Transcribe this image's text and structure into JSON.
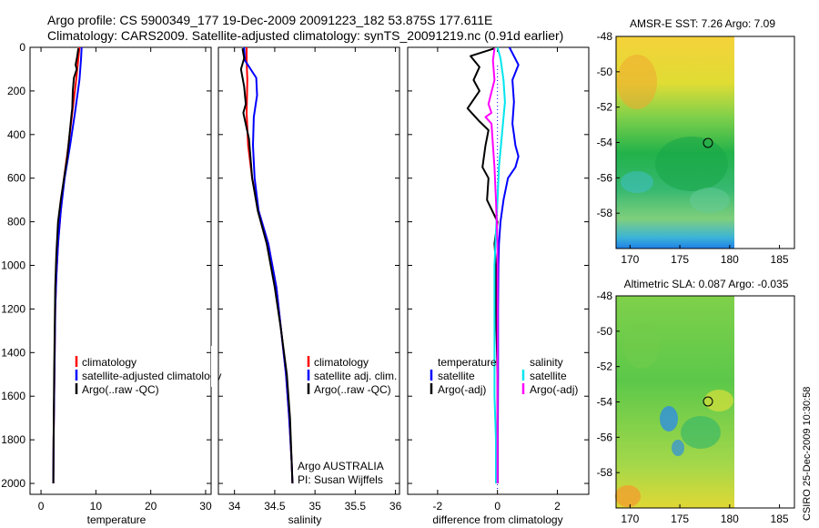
{
  "header": {
    "line1": "Argo profile: CS 5900349_177 19-Dec-2009 20091223_182 53.875S 177.611E",
    "line2": "Climatology: CARS2009. Satellite-adjusted climatology: synTS_20091219.nc (0.91d earlier)"
  },
  "credit": "CSIRO 25-Dec-2009 10:30:58",
  "colors": {
    "climatology": "#ff0000",
    "satellite": "#0000ff",
    "argo": "#000000",
    "satellite_salinity": "#00e5ee",
    "argo_salinity": "#ff00ff",
    "zero_line": "#0000ff"
  },
  "chart_data": [
    {
      "id": "temperature",
      "type": "line",
      "xlabel": "temperature",
      "ylabel": "",
      "xlim": [
        -2,
        31
      ],
      "ylim": [
        2050,
        0
      ],
      "xticks": [
        0,
        10,
        20,
        30
      ],
      "yticks": [
        0,
        200,
        400,
        600,
        800,
        1000,
        1200,
        1400,
        1600,
        1800,
        2000
      ],
      "legend": {
        "position": "bottom-right",
        "entries": [
          "climatology",
          "satellite-adjusted climatology",
          "Argo(..raw -QC)"
        ]
      },
      "series": [
        {
          "name": "climatology",
          "color": "#ff0000",
          "x": [
            7.0,
            6.8,
            6.4,
            5.7,
            5.0,
            4.2,
            3.6,
            3.1,
            2.8,
            2.6,
            2.5,
            2.4,
            2.3,
            2.25
          ],
          "y": [
            0,
            50,
            150,
            300,
            450,
            600,
            750,
            900,
            1050,
            1200,
            1400,
            1600,
            1800,
            2000
          ]
        },
        {
          "name": "satellite-adjusted climatology",
          "color": "#0000ff",
          "x": [
            7.4,
            7.3,
            7.0,
            6.2,
            5.3,
            4.3,
            3.6,
            3.1,
            2.8,
            2.6,
            2.5,
            2.4,
            2.3,
            2.25
          ],
          "y": [
            0,
            50,
            150,
            300,
            450,
            600,
            750,
            900,
            1050,
            1200,
            1400,
            1600,
            1800,
            2000
          ]
        },
        {
          "name": "Argo(..raw -QC)",
          "color": "#000000",
          "x": [
            6.8,
            6.6,
            6.3,
            6.5,
            6.0,
            5.8,
            5.7,
            5.6,
            5.2,
            4.8,
            4.2,
            3.6,
            3.1,
            2.8,
            2.6,
            2.5,
            2.4,
            2.3,
            2.25
          ],
          "y": [
            5,
            40,
            80,
            100,
            140,
            200,
            280,
            300,
            400,
            500,
            600,
            700,
            800,
            950,
            1100,
            1300,
            1500,
            1800,
            2000
          ]
        }
      ]
    },
    {
      "id": "salinity",
      "type": "line",
      "xlabel": "salinity",
      "ylabel": "",
      "xlim": [
        33.8,
        36.05
      ],
      "ylim": [
        2050,
        0
      ],
      "xticks": [
        34,
        34.5,
        35,
        35.5,
        36
      ],
      "xtick_labels": [
        "34",
        "34.5",
        "35",
        "35.5",
        "36"
      ],
      "legend": {
        "position": "bottom-right",
        "entries": [
          "climatology",
          "satellite adj. clim.",
          "Argo(..raw -QC)"
        ]
      },
      "annotations": [
        "Argo AUSTRALIA",
        "PI: Susan Wijffels"
      ],
      "series": [
        {
          "name": "climatology",
          "color": "#ff0000",
          "x": [
            34.15,
            34.15,
            34.16,
            34.15,
            34.17,
            34.22,
            34.3,
            34.42,
            34.52,
            34.58,
            34.64,
            34.68,
            34.71,
            34.72
          ],
          "y": [
            0,
            60,
            150,
            300,
            450,
            600,
            750,
            900,
            1100,
            1300,
            1500,
            1700,
            1900,
            2000
          ]
        },
        {
          "name": "satellite adj. clim.",
          "color": "#0000ff",
          "x": [
            34.12,
            34.13,
            34.27,
            34.28,
            34.24,
            34.23,
            34.25,
            34.3,
            34.42,
            34.52,
            34.58,
            34.64,
            34.68,
            34.71,
            34.72
          ],
          "y": [
            0,
            60,
            140,
            220,
            320,
            450,
            600,
            750,
            900,
            1100,
            1300,
            1500,
            1700,
            1900,
            2000
          ]
        },
        {
          "name": "Argo(..raw -QC)",
          "color": "#000000",
          "x": [
            34.1,
            34.12,
            34.08,
            34.12,
            34.14,
            34.11,
            34.18,
            34.22,
            34.29,
            34.4,
            34.5,
            34.58,
            34.65,
            34.69,
            34.71,
            34.72
          ],
          "y": [
            5,
            50,
            100,
            180,
            260,
            300,
            420,
            600,
            750,
            900,
            1100,
            1300,
            1500,
            1700,
            1900,
            2000
          ]
        }
      ]
    },
    {
      "id": "difference",
      "type": "line",
      "xlabel": "difference from climatology",
      "ylabel": "",
      "xlim": [
        -3,
        3.05
      ],
      "ylim": [
        2050,
        0
      ],
      "xticks": [
        -2,
        0,
        2
      ],
      "legend": {
        "position": "bottom",
        "entries": [
          "temperature",
          "satellite",
          "Argo(-adj)",
          "salinity",
          "satellite",
          "Argo(-adj)"
        ]
      },
      "series": [
        {
          "name": "temperature satellite",
          "color": "#0000ff",
          "x": [
            0.4,
            0.7,
            0.5,
            0.55,
            0.5,
            0.55,
            0.6,
            0.7,
            0.6,
            0.35,
            0.2,
            0.1,
            0.05,
            0.03,
            0.02,
            0.02,
            0.01,
            0.01
          ],
          "y": [
            0,
            80,
            150,
            250,
            350,
            400,
            450,
            500,
            550,
            600,
            700,
            800,
            900,
            1000,
            1200,
            1500,
            1800,
            2000
          ]
        },
        {
          "name": "temperature Argo(-adj)",
          "color": "#000000",
          "x": [
            -0.1,
            -0.9,
            -0.6,
            -0.8,
            -0.6,
            -1.0,
            -0.6,
            -0.3,
            -0.4,
            -0.5,
            -0.3,
            -0.35,
            0.0,
            -0.1,
            -0.05,
            -0.05,
            0.0,
            0.0
          ],
          "y": [
            5,
            40,
            90,
            150,
            200,
            280,
            340,
            380,
            450,
            550,
            600,
            700,
            800,
            900,
            1000,
            1200,
            1500,
            2000
          ]
        },
        {
          "name": "salinity satellite",
          "color": "#00e5ee",
          "x": [
            0.0,
            0.1,
            0.2,
            0.25,
            0.15,
            0.05,
            0.0,
            -0.05,
            -0.1,
            -0.1,
            -0.1,
            -0.1,
            -0.05,
            -0.05
          ],
          "y": [
            0,
            50,
            150,
            250,
            400,
            550,
            700,
            850,
            1000,
            1200,
            1400,
            1600,
            1800,
            2000
          ]
        },
        {
          "name": "salinity Argo(-adj)",
          "color": "#ff00ff",
          "x": [
            -0.1,
            -0.15,
            -0.1,
            -0.3,
            -0.2,
            -0.4,
            -0.2,
            -0.15,
            -0.1,
            -0.05,
            0.0,
            0.0,
            0.0
          ],
          "y": [
            5,
            60,
            150,
            260,
            300,
            320,
            350,
            450,
            550,
            700,
            900,
            1200,
            2000
          ]
        }
      ]
    }
  ],
  "maps": [
    {
      "id": "sst",
      "title": "AMSR-E SST: 7.26 Argo: 7.09",
      "xlim": [
        168.6,
        186.5
      ],
      "ylim": [
        -60,
        -48
      ],
      "xticks": [
        170,
        175,
        180,
        185
      ],
      "yticks": [
        -48,
        -50,
        -52,
        -54,
        -56,
        -58
      ],
      "data_lon_max": 180,
      "float_position": {
        "lon": 177.611,
        "lat": -53.875
      }
    },
    {
      "id": "sla",
      "title": "Altimetric SLA: 0.087 Argo: -0.035",
      "xlim": [
        168.6,
        186.5
      ],
      "ylim": [
        -60,
        -48
      ],
      "xticks": [
        170,
        175,
        180,
        185
      ],
      "yticks": [
        -48,
        -50,
        -52,
        -54,
        -56,
        -58
      ],
      "data_lon_max": 180,
      "float_position": {
        "lon": 177.611,
        "lat": -53.875
      }
    }
  ]
}
